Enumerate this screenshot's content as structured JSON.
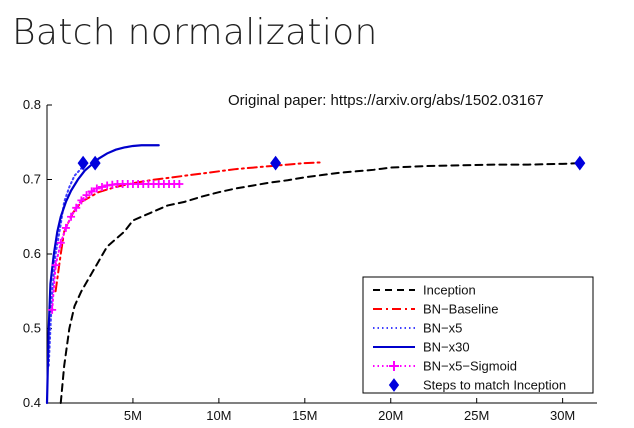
{
  "slide": {
    "title": "Batch normalization",
    "source_note": "Original paper: https://arxiv.org/abs/1502.03167"
  },
  "chart_data": {
    "type": "line",
    "title": "",
    "xlabel": "",
    "ylabel": "",
    "xlim": [
      0,
      32000000
    ],
    "ylim": [
      0.4,
      0.8
    ],
    "grid": false,
    "legend_position": "bottom-right",
    "x_ticks": [
      {
        "value": 5000000,
        "label": "5M"
      },
      {
        "value": 10000000,
        "label": "10M"
      },
      {
        "value": 15000000,
        "label": "15M"
      },
      {
        "value": 20000000,
        "label": "20M"
      },
      {
        "value": 25000000,
        "label": "25M"
      },
      {
        "value": 30000000,
        "label": "30M"
      }
    ],
    "y_ticks": [
      {
        "value": 0.4,
        "label": "0.4"
      },
      {
        "value": 0.5,
        "label": "0.5"
      },
      {
        "value": 0.6,
        "label": "0.6"
      },
      {
        "value": 0.7,
        "label": "0.7"
      },
      {
        "value": 0.8,
        "label": "0.8"
      }
    ],
    "series": [
      {
        "name": "Inception",
        "color": "#000000",
        "style": "dashed",
        "x": [
          800000,
          1000000,
          1300000,
          1600000,
          2000000,
          2500000,
          3000000,
          3500000,
          4000000,
          4500000,
          5000000,
          5500000,
          6000000,
          7000000,
          8000000,
          9000000,
          10000000,
          11000000,
          12000000,
          13000000,
          14000000,
          15000000,
          16000000,
          17000000,
          18000000,
          19000000,
          20000000,
          21000000,
          22000000,
          24000000,
          26000000,
          28000000,
          30000000,
          31000000
        ],
        "y": [
          0.4,
          0.45,
          0.5,
          0.53,
          0.55,
          0.57,
          0.59,
          0.61,
          0.62,
          0.63,
          0.645,
          0.65,
          0.655,
          0.665,
          0.67,
          0.677,
          0.683,
          0.688,
          0.692,
          0.696,
          0.699,
          0.703,
          0.706,
          0.709,
          0.711,
          0.713,
          0.716,
          0.717,
          0.718,
          0.719,
          0.72,
          0.72,
          0.721,
          0.722
        ]
      },
      {
        "name": "BN-Baseline",
        "color": "#ff0000",
        "style": "dashdot",
        "x": [
          500000,
          800000,
          1000000,
          1500000,
          2000000,
          3000000,
          4000000,
          5000000,
          6000000,
          7000000,
          8000000,
          9000000,
          10000000,
          11000000,
          12000000,
          13000000,
          14000000,
          15000000,
          16000000
        ],
        "y": [
          0.55,
          0.6,
          0.63,
          0.655,
          0.67,
          0.683,
          0.69,
          0.695,
          0.699,
          0.702,
          0.705,
          0.708,
          0.711,
          0.714,
          0.716,
          0.718,
          0.72,
          0.722,
          0.723
        ]
      },
      {
        "name": "BN-x5",
        "color": "#4040ff",
        "style": "dotted",
        "x": [
          100000,
          300000,
          500000,
          800000,
          1000000,
          1300000,
          1600000,
          2000000
        ],
        "y": [
          0.45,
          0.55,
          0.6,
          0.64,
          0.67,
          0.69,
          0.705,
          0.715
        ]
      },
      {
        "name": "BN-x30",
        "color": "#0000cc",
        "style": "solid",
        "x": [
          0,
          100000,
          200000,
          400000,
          600000,
          800000,
          1100000,
          1400000,
          1800000,
          2200000,
          2600000,
          3000000,
          3500000,
          4000000,
          4500000,
          5000000,
          5500000,
          6000000,
          6500000
        ],
        "y": [
          0.4,
          0.5,
          0.56,
          0.6,
          0.63,
          0.65,
          0.67,
          0.685,
          0.7,
          0.712,
          0.72,
          0.728,
          0.735,
          0.74,
          0.743,
          0.745,
          0.746,
          0.746,
          0.746
        ]
      },
      {
        "name": "BN-x5-Sigmoid",
        "color": "#ff00ff",
        "style": "dotted-plus",
        "x": [
          300000,
          500000,
          800000,
          1100000,
          1400000,
          1700000,
          2000000,
          2300000,
          2600000,
          2900000,
          3200000,
          3500000,
          3800000,
          4100000,
          4400000,
          4700000,
          5000000,
          5300000,
          5600000,
          5900000,
          6200000,
          6500000,
          6800000,
          7100000,
          7400000,
          7700000
        ],
        "y": [
          0.525,
          0.585,
          0.615,
          0.635,
          0.65,
          0.662,
          0.672,
          0.679,
          0.684,
          0.688,
          0.69,
          0.692,
          0.693,
          0.694,
          0.694,
          0.694,
          0.694,
          0.694,
          0.694,
          0.694,
          0.694,
          0.694,
          0.694,
          0.694,
          0.694,
          0.694
        ]
      }
    ],
    "markers": {
      "name": "Steps to match Inception",
      "color": "#0000dd",
      "points": [
        {
          "x": 2100000,
          "y": 0.722
        },
        {
          "x": 2800000,
          "y": 0.722
        },
        {
          "x": 13300000,
          "y": 0.722
        },
        {
          "x": 31000000,
          "y": 0.722
        }
      ]
    },
    "legend": [
      {
        "label": "Inception",
        "style": "dashed",
        "color": "#000000"
      },
      {
        "label": "BN−Baseline",
        "style": "dashdot",
        "color": "#ff0000"
      },
      {
        "label": "BN−x5",
        "style": "dotted",
        "color": "#4040ff"
      },
      {
        "label": "BN−x30",
        "style": "solid",
        "color": "#0000cc"
      },
      {
        "label": "BN−x5−Sigmoid",
        "style": "dotted-plus",
        "color": "#ff00ff"
      },
      {
        "label": "Steps to match Inception",
        "style": "diamond",
        "color": "#0000dd"
      }
    ]
  }
}
